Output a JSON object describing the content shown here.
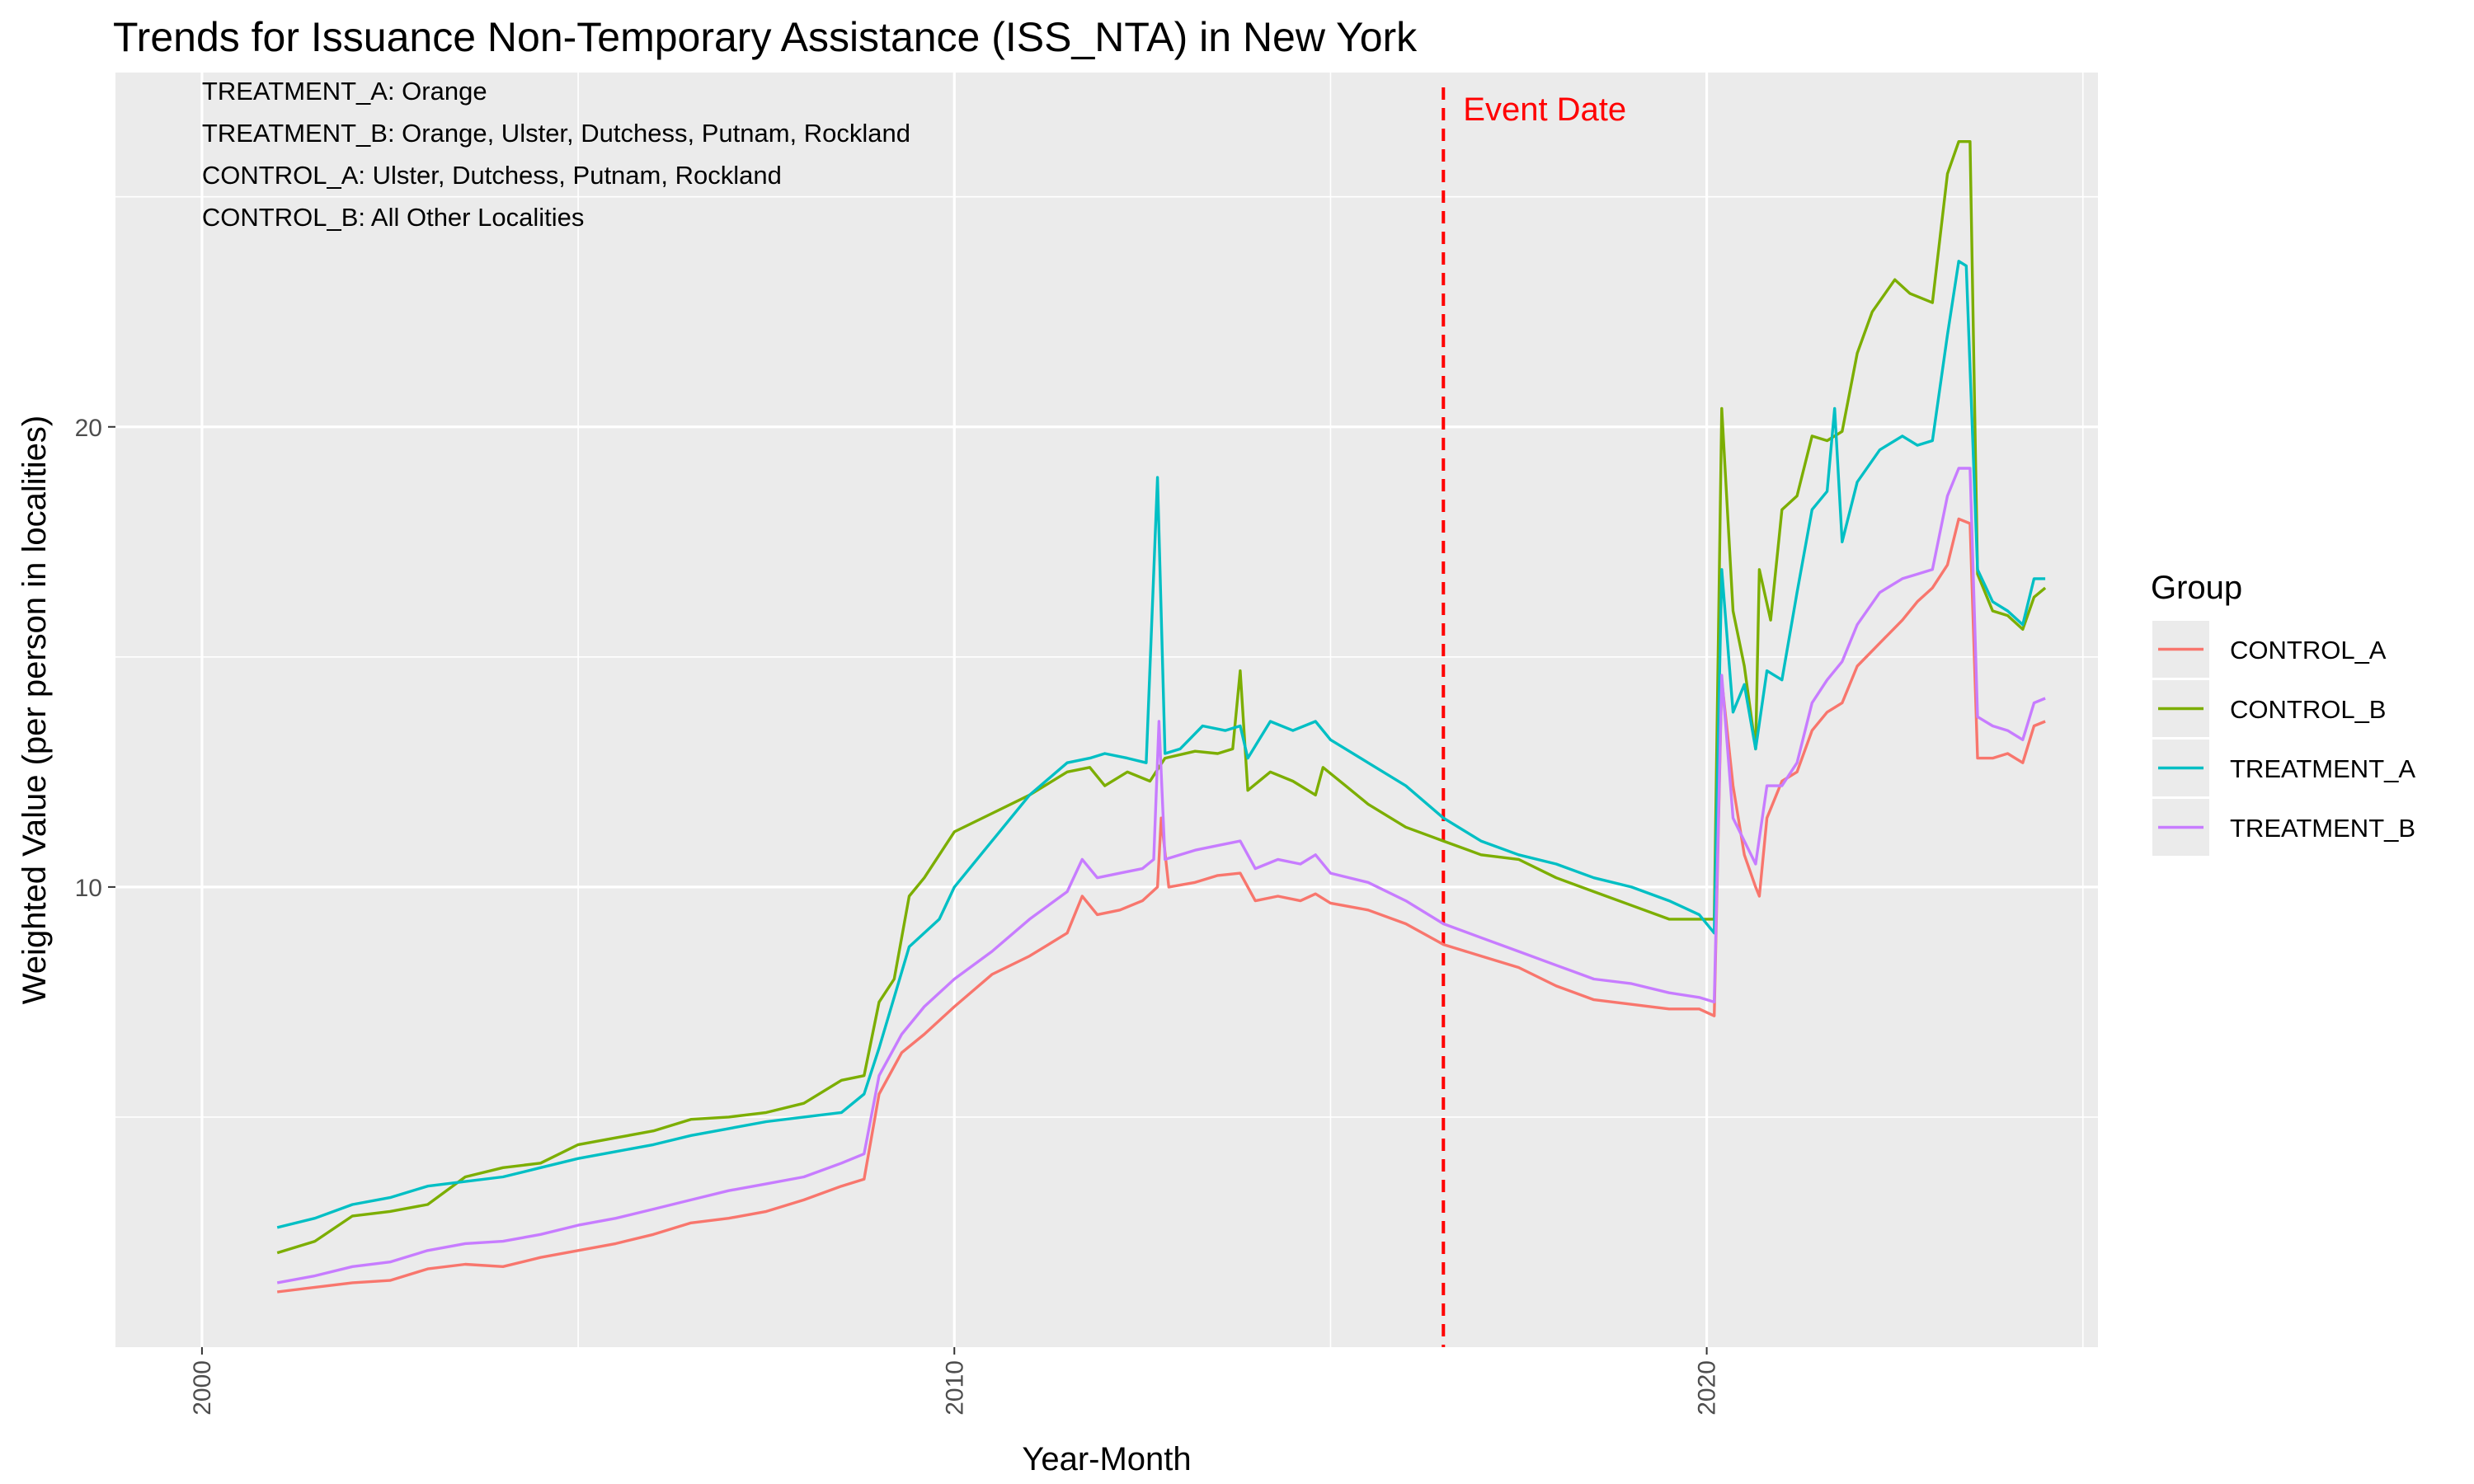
{
  "chart_data": {
    "type": "line",
    "title": "Trends for Issuance Non-Temporary Assistance (ISS_NTA) in New York",
    "xlabel": "Year-Month",
    "ylabel": "Weighted Value (per person in localities)",
    "xlim": [
      1998.85,
      2025.2
    ],
    "ylim": [
      0.0,
      27.7
    ],
    "x_ticks": [
      2000,
      2010,
      2020
    ],
    "x_tick_labels": [
      "2000",
      "2010",
      "2020"
    ],
    "y_ticks": [
      10,
      20
    ],
    "y_tick_labels": [
      "10",
      "20"
    ],
    "grid": true,
    "legend": {
      "title": "Group",
      "position": "right"
    },
    "annotations": [
      "TREATMENT_A: Orange",
      "TREATMENT_B: Orange, Ulster, Dutchess, Putnam, Rockland",
      "CONTROL_A: Ulster, Dutchess, Putnam, Rockland",
      "CONTROL_B: All Other Localities"
    ],
    "event": {
      "label": "Event Date",
      "x": 2016.5,
      "color": "#ff0000"
    },
    "series": [
      {
        "name": "CONTROL_A",
        "color": "#F8766D",
        "points": [
          [
            2001.0,
            1.2
          ],
          [
            2001.5,
            1.3
          ],
          [
            2002.0,
            1.4
          ],
          [
            2002.5,
            1.45
          ],
          [
            2003.0,
            1.7
          ],
          [
            2003.5,
            1.8
          ],
          [
            2004.0,
            1.75
          ],
          [
            2004.5,
            1.95
          ],
          [
            2005.0,
            2.1
          ],
          [
            2005.5,
            2.25
          ],
          [
            2006.0,
            2.45
          ],
          [
            2006.5,
            2.7
          ],
          [
            2007.0,
            2.8
          ],
          [
            2007.5,
            2.95
          ],
          [
            2008.0,
            3.2
          ],
          [
            2008.5,
            3.5
          ],
          [
            2008.8,
            3.65
          ],
          [
            2009.0,
            5.5
          ],
          [
            2009.3,
            6.4
          ],
          [
            2009.6,
            6.8
          ],
          [
            2010.0,
            7.4
          ],
          [
            2010.5,
            8.1
          ],
          [
            2011.0,
            8.5
          ],
          [
            2011.5,
            9.0
          ],
          [
            2011.7,
            9.8
          ],
          [
            2011.9,
            9.4
          ],
          [
            2012.2,
            9.5
          ],
          [
            2012.5,
            9.7
          ],
          [
            2012.7,
            10.0
          ],
          [
            2012.75,
            11.5
          ],
          [
            2012.85,
            10.0
          ],
          [
            2013.2,
            10.1
          ],
          [
            2013.5,
            10.25
          ],
          [
            2013.8,
            10.3
          ],
          [
            2014.0,
            9.7
          ],
          [
            2014.3,
            9.8
          ],
          [
            2014.6,
            9.7
          ],
          [
            2014.8,
            9.85
          ],
          [
            2015.0,
            9.65
          ],
          [
            2015.5,
            9.5
          ],
          [
            2016.0,
            9.2
          ],
          [
            2016.5,
            8.75
          ],
          [
            2017.0,
            8.5
          ],
          [
            2017.5,
            8.25
          ],
          [
            2018.0,
            7.85
          ],
          [
            2018.5,
            7.55
          ],
          [
            2019.0,
            7.45
          ],
          [
            2019.5,
            7.35
          ],
          [
            2019.9,
            7.35
          ],
          [
            2020.1,
            7.2
          ],
          [
            2020.2,
            14.5
          ],
          [
            2020.35,
            12.2
          ],
          [
            2020.5,
            10.7
          ],
          [
            2020.65,
            10.0
          ],
          [
            2020.7,
            9.8
          ],
          [
            2020.8,
            11.5
          ],
          [
            2021.0,
            12.3
          ],
          [
            2021.2,
            12.5
          ],
          [
            2021.4,
            13.4
          ],
          [
            2021.6,
            13.8
          ],
          [
            2021.8,
            14.0
          ],
          [
            2022.0,
            14.8
          ],
          [
            2022.3,
            15.3
          ],
          [
            2022.6,
            15.8
          ],
          [
            2022.8,
            16.2
          ],
          [
            2023.0,
            16.5
          ],
          [
            2023.2,
            17.0
          ],
          [
            2023.35,
            18.0
          ],
          [
            2023.5,
            17.9
          ],
          [
            2023.6,
            12.8
          ],
          [
            2023.8,
            12.8
          ],
          [
            2024.0,
            12.9
          ],
          [
            2024.2,
            12.7
          ],
          [
            2024.35,
            13.5
          ],
          [
            2024.5,
            13.6
          ]
        ]
      },
      {
        "name": "CONTROL_B",
        "color": "#7CAE00",
        "points": [
          [
            2001.0,
            2.05
          ],
          [
            2001.5,
            2.3
          ],
          [
            2002.0,
            2.85
          ],
          [
            2002.5,
            2.95
          ],
          [
            2003.0,
            3.1
          ],
          [
            2003.5,
            3.7
          ],
          [
            2004.0,
            3.9
          ],
          [
            2004.5,
            4.0
          ],
          [
            2005.0,
            4.4
          ],
          [
            2005.5,
            4.55
          ],
          [
            2006.0,
            4.7
          ],
          [
            2006.5,
            4.95
          ],
          [
            2007.0,
            5.0
          ],
          [
            2007.5,
            5.1
          ],
          [
            2008.0,
            5.3
          ],
          [
            2008.5,
            5.8
          ],
          [
            2008.8,
            5.9
          ],
          [
            2009.0,
            7.5
          ],
          [
            2009.2,
            8.0
          ],
          [
            2009.4,
            9.8
          ],
          [
            2009.6,
            10.2
          ],
          [
            2010.0,
            11.2
          ],
          [
            2010.5,
            11.6
          ],
          [
            2011.0,
            12.0
          ],
          [
            2011.5,
            12.5
          ],
          [
            2011.8,
            12.6
          ],
          [
            2012.0,
            12.2
          ],
          [
            2012.3,
            12.5
          ],
          [
            2012.6,
            12.3
          ],
          [
            2012.8,
            12.8
          ],
          [
            2013.2,
            12.95
          ],
          [
            2013.5,
            12.9
          ],
          [
            2013.7,
            13.0
          ],
          [
            2013.8,
            14.7
          ],
          [
            2013.9,
            12.1
          ],
          [
            2014.2,
            12.5
          ],
          [
            2014.5,
            12.3
          ],
          [
            2014.8,
            12.0
          ],
          [
            2014.9,
            12.6
          ],
          [
            2015.2,
            12.2
          ],
          [
            2015.5,
            11.8
          ],
          [
            2016.0,
            11.3
          ],
          [
            2016.5,
            11.0
          ],
          [
            2017.0,
            10.7
          ],
          [
            2017.5,
            10.6
          ],
          [
            2018.0,
            10.2
          ],
          [
            2018.5,
            9.9
          ],
          [
            2019.0,
            9.6
          ],
          [
            2019.5,
            9.3
          ],
          [
            2019.9,
            9.3
          ],
          [
            2020.1,
            9.3
          ],
          [
            2020.2,
            20.4
          ],
          [
            2020.35,
            16.0
          ],
          [
            2020.5,
            14.8
          ],
          [
            2020.65,
            13.0
          ],
          [
            2020.7,
            16.9
          ],
          [
            2020.85,
            15.8
          ],
          [
            2021.0,
            18.2
          ],
          [
            2021.2,
            18.5
          ],
          [
            2021.4,
            19.8
          ],
          [
            2021.6,
            19.7
          ],
          [
            2021.8,
            19.9
          ],
          [
            2022.0,
            21.6
          ],
          [
            2022.2,
            22.5
          ],
          [
            2022.5,
            23.2
          ],
          [
            2022.7,
            22.9
          ],
          [
            2023.0,
            22.7
          ],
          [
            2023.2,
            25.5
          ],
          [
            2023.35,
            26.2
          ],
          [
            2023.5,
            26.2
          ],
          [
            2023.6,
            16.8
          ],
          [
            2023.8,
            16.0
          ],
          [
            2024.0,
            15.9
          ],
          [
            2024.2,
            15.6
          ],
          [
            2024.35,
            16.3
          ],
          [
            2024.5,
            16.5
          ]
        ]
      },
      {
        "name": "TREATMENT_A",
        "color": "#00BFC4",
        "points": [
          [
            2001.0,
            2.6
          ],
          [
            2001.5,
            2.8
          ],
          [
            2002.0,
            3.1
          ],
          [
            2002.5,
            3.25
          ],
          [
            2003.0,
            3.5
          ],
          [
            2003.5,
            3.6
          ],
          [
            2004.0,
            3.7
          ],
          [
            2004.5,
            3.9
          ],
          [
            2005.0,
            4.1
          ],
          [
            2005.5,
            4.25
          ],
          [
            2006.0,
            4.4
          ],
          [
            2006.5,
            4.6
          ],
          [
            2007.0,
            4.75
          ],
          [
            2007.5,
            4.9
          ],
          [
            2008.0,
            5.0
          ],
          [
            2008.5,
            5.1
          ],
          [
            2008.8,
            5.5
          ],
          [
            2009.0,
            6.5
          ],
          [
            2009.4,
            8.7
          ],
          [
            2009.8,
            9.3
          ],
          [
            2010.0,
            10.0
          ],
          [
            2010.5,
            11.0
          ],
          [
            2011.0,
            12.0
          ],
          [
            2011.5,
            12.7
          ],
          [
            2011.8,
            12.8
          ],
          [
            2012.0,
            12.9
          ],
          [
            2012.3,
            12.8
          ],
          [
            2012.55,
            12.7
          ],
          [
            2012.7,
            18.9
          ],
          [
            2012.8,
            12.9
          ],
          [
            2013.0,
            13.0
          ],
          [
            2013.3,
            13.5
          ],
          [
            2013.6,
            13.4
          ],
          [
            2013.8,
            13.5
          ],
          [
            2013.9,
            12.8
          ],
          [
            2014.2,
            13.6
          ],
          [
            2014.5,
            13.4
          ],
          [
            2014.8,
            13.6
          ],
          [
            2015.0,
            13.2
          ],
          [
            2015.5,
            12.7
          ],
          [
            2016.0,
            12.2
          ],
          [
            2016.5,
            11.5
          ],
          [
            2017.0,
            11.0
          ],
          [
            2017.5,
            10.7
          ],
          [
            2018.0,
            10.5
          ],
          [
            2018.5,
            10.2
          ],
          [
            2019.0,
            10.0
          ],
          [
            2019.5,
            9.7
          ],
          [
            2019.9,
            9.4
          ],
          [
            2020.1,
            9.0
          ],
          [
            2020.2,
            16.9
          ],
          [
            2020.35,
            13.8
          ],
          [
            2020.5,
            14.4
          ],
          [
            2020.65,
            13.0
          ],
          [
            2020.8,
            14.7
          ],
          [
            2021.0,
            14.5
          ],
          [
            2021.2,
            16.4
          ],
          [
            2021.4,
            18.2
          ],
          [
            2021.6,
            18.6
          ],
          [
            2021.7,
            20.4
          ],
          [
            2021.8,
            17.5
          ],
          [
            2022.0,
            18.8
          ],
          [
            2022.3,
            19.5
          ],
          [
            2022.6,
            19.8
          ],
          [
            2022.8,
            19.6
          ],
          [
            2023.0,
            19.7
          ],
          [
            2023.2,
            22.0
          ],
          [
            2023.35,
            23.6
          ],
          [
            2023.45,
            23.5
          ],
          [
            2023.6,
            16.9
          ],
          [
            2023.8,
            16.2
          ],
          [
            2024.0,
            16.0
          ],
          [
            2024.2,
            15.7
          ],
          [
            2024.35,
            16.7
          ],
          [
            2024.5,
            16.7
          ]
        ]
      },
      {
        "name": "TREATMENT_B",
        "color": "#C77CFF",
        "points": [
          [
            2001.0,
            1.4
          ],
          [
            2001.5,
            1.55
          ],
          [
            2002.0,
            1.75
          ],
          [
            2002.5,
            1.85
          ],
          [
            2003.0,
            2.1
          ],
          [
            2003.5,
            2.25
          ],
          [
            2004.0,
            2.3
          ],
          [
            2004.5,
            2.45
          ],
          [
            2005.0,
            2.65
          ],
          [
            2005.5,
            2.8
          ],
          [
            2006.0,
            3.0
          ],
          [
            2006.5,
            3.2
          ],
          [
            2007.0,
            3.4
          ],
          [
            2007.5,
            3.55
          ],
          [
            2008.0,
            3.7
          ],
          [
            2008.5,
            4.0
          ],
          [
            2008.8,
            4.2
          ],
          [
            2009.0,
            5.9
          ],
          [
            2009.3,
            6.8
          ],
          [
            2009.6,
            7.4
          ],
          [
            2010.0,
            8.0
          ],
          [
            2010.5,
            8.6
          ],
          [
            2011.0,
            9.3
          ],
          [
            2011.5,
            9.9
          ],
          [
            2011.7,
            10.6
          ],
          [
            2011.9,
            10.2
          ],
          [
            2012.2,
            10.3
          ],
          [
            2012.5,
            10.4
          ],
          [
            2012.65,
            10.6
          ],
          [
            2012.72,
            13.6
          ],
          [
            2012.8,
            10.6
          ],
          [
            2013.2,
            10.8
          ],
          [
            2013.5,
            10.9
          ],
          [
            2013.8,
            11.0
          ],
          [
            2014.0,
            10.4
          ],
          [
            2014.3,
            10.6
          ],
          [
            2014.6,
            10.5
          ],
          [
            2014.8,
            10.7
          ],
          [
            2015.0,
            10.3
          ],
          [
            2015.5,
            10.1
          ],
          [
            2016.0,
            9.7
          ],
          [
            2016.5,
            9.2
          ],
          [
            2017.0,
            8.9
          ],
          [
            2017.5,
            8.6
          ],
          [
            2018.0,
            8.3
          ],
          [
            2018.5,
            8.0
          ],
          [
            2019.0,
            7.9
          ],
          [
            2019.5,
            7.7
          ],
          [
            2019.9,
            7.6
          ],
          [
            2020.1,
            7.5
          ],
          [
            2020.2,
            14.6
          ],
          [
            2020.35,
            11.5
          ],
          [
            2020.5,
            11.0
          ],
          [
            2020.65,
            10.5
          ],
          [
            2020.8,
            12.2
          ],
          [
            2021.0,
            12.2
          ],
          [
            2021.2,
            12.7
          ],
          [
            2021.4,
            14.0
          ],
          [
            2021.6,
            14.5
          ],
          [
            2021.8,
            14.9
          ],
          [
            2022.0,
            15.7
          ],
          [
            2022.3,
            16.4
          ],
          [
            2022.6,
            16.7
          ],
          [
            2022.8,
            16.8
          ],
          [
            2023.0,
            16.9
          ],
          [
            2023.2,
            18.5
          ],
          [
            2023.35,
            19.1
          ],
          [
            2023.5,
            19.1
          ],
          [
            2023.6,
            13.7
          ],
          [
            2023.8,
            13.5
          ],
          [
            2024.0,
            13.4
          ],
          [
            2024.2,
            13.2
          ],
          [
            2024.35,
            14.0
          ],
          [
            2024.5,
            14.1
          ]
        ]
      }
    ]
  }
}
